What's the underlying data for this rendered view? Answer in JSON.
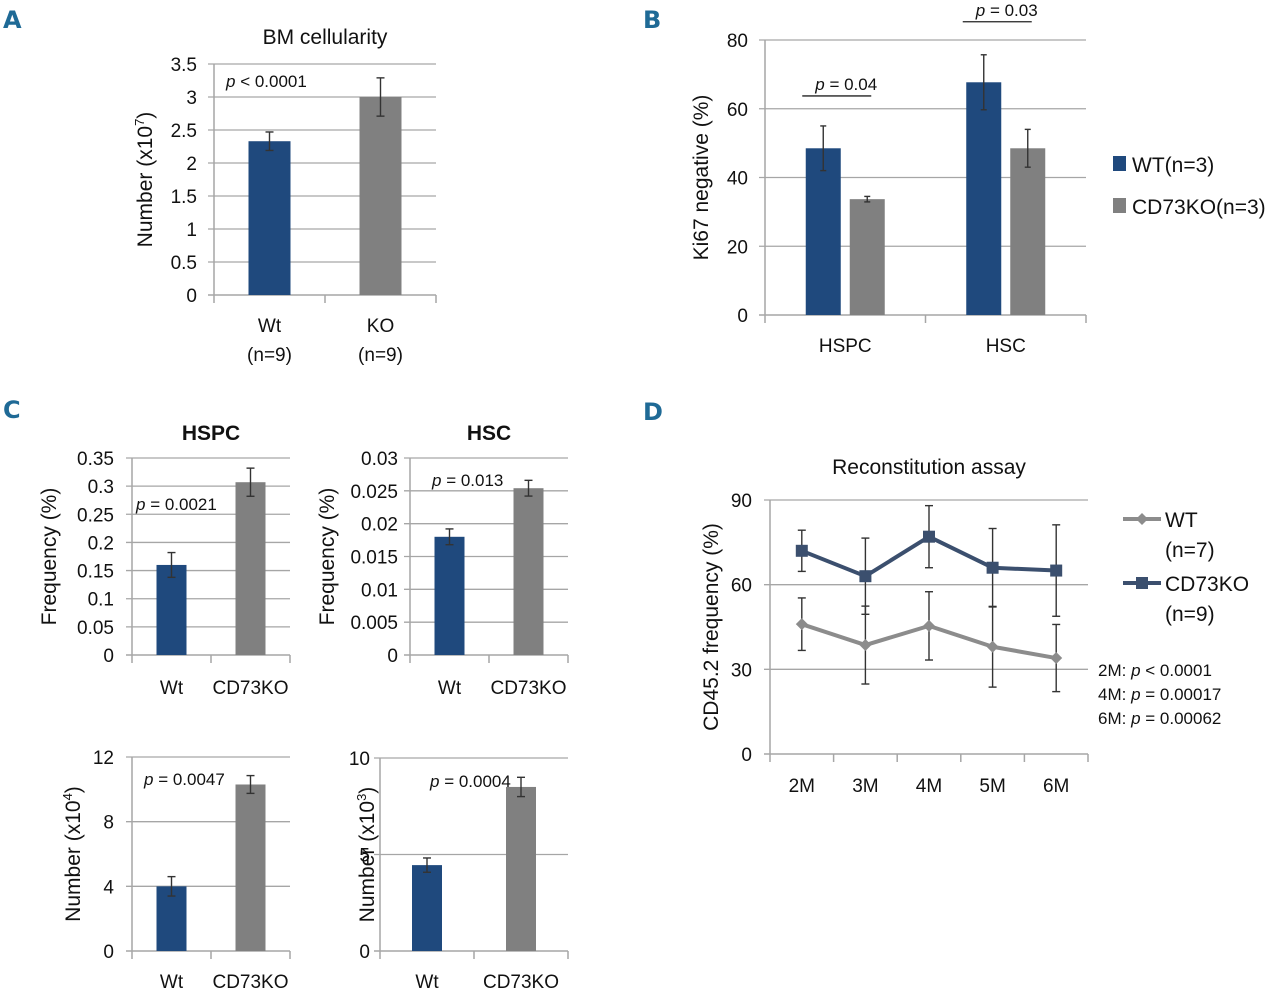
{
  "colors": {
    "wt": "#1f497d",
    "ko": "#808080",
    "d_ko": "#3b4f6e",
    "d_wt": "#8c8c8c",
    "panel_letter": "#1f6a96"
  },
  "chart_data": [
    {
      "id": "A",
      "panel_label": "A",
      "type": "bar",
      "title": "BM cellularity",
      "ylabel": "Number (x10",
      "ylabel_sup": "7",
      "ylabel_end": ")",
      "ylim": [
        0,
        3.5
      ],
      "yticks": [
        0,
        0.5,
        1,
        1.5,
        2,
        2.5,
        3,
        3.5
      ],
      "ytick_labels": [
        "0",
        "0.5",
        "1",
        "1.5",
        "2",
        "2.5",
        "3",
        "3.5"
      ],
      "grid": true,
      "categories": [
        "Wt\n(n=9)",
        "KO\n(n=9)"
      ],
      "category_lines": [
        [
          "Wt",
          "(n=9)"
        ],
        [
          "KO",
          "(n=9)"
        ]
      ],
      "values": [
        2.33,
        3.0
      ],
      "errors": [
        0.14,
        0.29
      ],
      "bar_colors": [
        "wt",
        "ko"
      ],
      "annotations": [
        {
          "p_prefix": "p",
          "text": " < 0.0001"
        }
      ]
    },
    {
      "id": "B",
      "panel_label": "B",
      "type": "bar",
      "title": "",
      "ylabel": "Ki67 negative (%)",
      "ylim": [
        0,
        80
      ],
      "yticks": [
        0,
        20,
        40,
        60,
        80
      ],
      "ytick_labels": [
        "0",
        "20",
        "40",
        "60",
        "80"
      ],
      "grid": true,
      "categories": [
        "HSPC",
        "HSC"
      ],
      "series": [
        {
          "name": "WT(n=3)",
          "color": "wt",
          "values": [
            48.5,
            67.7
          ],
          "errors": [
            6.5,
            8.0
          ]
        },
        {
          "name": "CD73KO(n=3)",
          "color": "ko",
          "values": [
            33.7,
            48.5
          ],
          "errors": [
            0.8,
            5.5
          ]
        }
      ],
      "legend_position": "right",
      "annotations": [
        {
          "p_prefix": "p",
          "text": " = 0.04",
          "group": 0
        },
        {
          "p_prefix": "p",
          "text": " = 0.03",
          "group": 1
        }
      ]
    },
    {
      "id": "C1",
      "panel_label": "C",
      "type": "bar",
      "title": "HSPC",
      "ylabel": "Frequency (%)",
      "ylim": [
        0,
        0.35
      ],
      "yticks": [
        0,
        0.05,
        0.1,
        0.15,
        0.2,
        0.25,
        0.3,
        0.35
      ],
      "ytick_labels": [
        "0",
        "0.05",
        "0.1",
        "0.15",
        "0.2",
        "0.25",
        "0.3",
        "0.35"
      ],
      "grid": true,
      "categories": [
        "Wt",
        "CD73KO"
      ],
      "values": [
        0.16,
        0.307
      ],
      "errors": [
        0.022,
        0.025
      ],
      "bar_colors": [
        "wt",
        "ko"
      ],
      "annotations": [
        {
          "p_prefix": "p",
          "text": " = 0.0021"
        }
      ]
    },
    {
      "id": "C2",
      "panel_label": "",
      "type": "bar",
      "title": "HSC",
      "ylabel": "Frequency (%)",
      "ylim": [
        0,
        0.03
      ],
      "yticks": [
        0,
        0.005,
        0.01,
        0.015,
        0.02,
        0.025,
        0.03
      ],
      "ytick_labels": [
        "0",
        "0.005",
        "0.01",
        "0.015",
        "0.02",
        "0.025",
        "0.03"
      ],
      "grid": true,
      "categories": [
        "Wt",
        "CD73KO"
      ],
      "values": [
        0.018,
        0.0254
      ],
      "errors": [
        0.0012,
        0.0012
      ],
      "bar_colors": [
        "wt",
        "ko"
      ],
      "annotations": [
        {
          "p_prefix": "p",
          "text": " = 0.013"
        }
      ]
    },
    {
      "id": "C3",
      "panel_label": "",
      "type": "bar",
      "title": "",
      "ylabel": "Number (x10",
      "ylabel_sup": "4",
      "ylabel_end": ")",
      "ylim": [
        0,
        12
      ],
      "yticks": [
        0,
        4,
        8,
        12
      ],
      "ytick_labels": [
        "0",
        "4",
        "8",
        "12"
      ],
      "grid": true,
      "categories": [
        "Wt",
        "CD73KO"
      ],
      "values": [
        4.0,
        10.3
      ],
      "errors": [
        0.6,
        0.55
      ],
      "bar_colors": [
        "wt",
        "ko"
      ],
      "annotations": [
        {
          "p_prefix": "p",
          "text": " = 0.0047"
        }
      ]
    },
    {
      "id": "C4",
      "panel_label": "",
      "type": "bar",
      "title": "",
      "ylabel": "Number (x10",
      "ylabel_sup": "3",
      "ylabel_end": ")",
      "ylim": [
        0,
        10
      ],
      "yticks": [
        0,
        5,
        10
      ],
      "ytick_labels": [
        "0",
        "5",
        "10"
      ],
      "grid": true,
      "categories": [
        "Wt",
        "CD73KO"
      ],
      "values": [
        4.45,
        8.5
      ],
      "errors": [
        0.37,
        0.5
      ],
      "bar_colors": [
        "wt",
        "ko"
      ],
      "annotations": [
        {
          "p_prefix": "p",
          "text": " = 0.0004"
        }
      ]
    },
    {
      "id": "D",
      "panel_label": "D",
      "type": "line",
      "title": "Reconstitution assay",
      "ylabel": "CD45.2 frequency (%)",
      "ylim": [
        0,
        90
      ],
      "yticks": [
        0,
        30,
        60,
        90
      ],
      "ytick_labels": [
        "0",
        "30",
        "60",
        "90"
      ],
      "grid": true,
      "x": [
        "2M",
        "3M",
        "4M",
        "5M",
        "6M"
      ],
      "series": [
        {
          "name": "WT",
          "sub": "(n=7)",
          "marker": "diamond",
          "color": "d_wt",
          "values": [
            46,
            38.6,
            45.4,
            38,
            34
          ],
          "errors": [
            9.3,
            13.8,
            12.1,
            14.3,
            11.9
          ]
        },
        {
          "name": "CD73KO",
          "sub": "(n=9)",
          "marker": "square",
          "color": "d_ko",
          "values": [
            72,
            63,
            77,
            66,
            65
          ],
          "errors": [
            7.3,
            13.5,
            11,
            13.9,
            16.2
          ]
        }
      ],
      "legend_position": "right",
      "annotations": [
        {
          "prefix": "2M: ",
          "p_prefix": "p",
          "text": " < 0.0001"
        },
        {
          "prefix": "4M: ",
          "p_prefix": "p",
          "text": " = 0.00017"
        },
        {
          "prefix": "6M: ",
          "p_prefix": "p",
          "text": " = 0.00062"
        }
      ]
    }
  ]
}
